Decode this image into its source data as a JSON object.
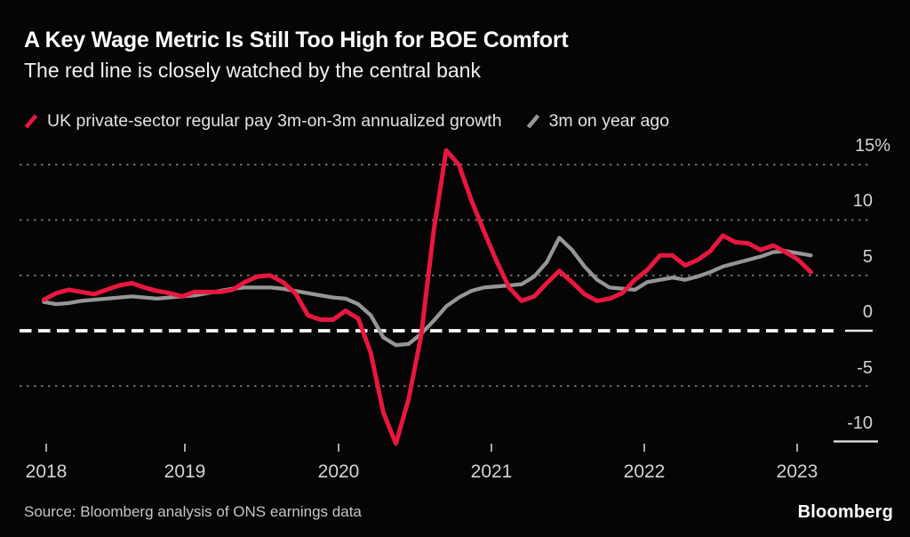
{
  "header": {
    "title": "A Key Wage Metric Is Still Too High for BOE Comfort",
    "subtitle": "The red line is closely watched by the central bank"
  },
  "legend": [
    {
      "label": "UK private-sector regular pay 3m-on-3m annualized growth",
      "color": "#e8173f"
    },
    {
      "label": "3m on year ago",
      "color": "#969696"
    }
  ],
  "footer": {
    "source": "Source: Bloomberg analysis of ONS earnings data",
    "brand": "Bloomberg"
  },
  "colors": {
    "background": "#050505",
    "grid_dotted": "#7a7a7a",
    "zero_line": "#ffffff",
    "axis_text": "#d4d4d4",
    "red_series": "#e8173f",
    "gray_series": "#969696"
  },
  "chart_data": {
    "type": "line",
    "title": "A Key Wage Metric Is Still Too High for BOE Comfort",
    "x_unit": "month",
    "x_start": "2018-01",
    "x_end": "2023-02",
    "x_tick_labels": [
      "2018",
      "2019",
      "2020",
      "2021",
      "2022",
      "2023"
    ],
    "y_ticks": [
      15,
      10,
      5,
      0,
      -5,
      -10
    ],
    "y_tick_labels": [
      "15%",
      "10",
      "5",
      "0",
      "-5",
      "-10"
    ],
    "ylim": [
      -12,
      17.5
    ],
    "grid": "horizontal dotted; emphasized white dashed line at 0",
    "legend_position": "top",
    "series": [
      {
        "name": "UK private-sector regular pay 3m-on-3m annualized growth",
        "color": "#e8173f",
        "values": [
          2.8,
          3.4,
          3.7,
          3.5,
          3.3,
          3.7,
          4.1,
          4.3,
          3.9,
          3.6,
          3.4,
          3.1,
          3.5,
          3.5,
          3.5,
          3.7,
          4.4,
          4.9,
          5.0,
          4.4,
          3.4,
          1.4,
          1.0,
          1.0,
          1.8,
          1.1,
          -2.0,
          -7.4,
          -10.2,
          -6.2,
          -0.5,
          9.0,
          16.3,
          15.0,
          11.8,
          9.0,
          6.3,
          3.9,
          2.7,
          3.1,
          4.3,
          5.4,
          4.4,
          3.3,
          2.7,
          2.9,
          3.4,
          4.6,
          5.5,
          6.8,
          6.8,
          5.9,
          6.4,
          7.2,
          8.6,
          8.0,
          7.9,
          7.3,
          7.7,
          7.1,
          6.4,
          5.3
        ]
      },
      {
        "name": "3m on year ago",
        "color": "#969696",
        "values": [
          2.6,
          2.4,
          2.5,
          2.7,
          2.8,
          2.9,
          3.0,
          3.1,
          3.0,
          2.9,
          3.0,
          3.1,
          3.2,
          3.4,
          3.6,
          3.8,
          3.9,
          3.9,
          3.9,
          3.8,
          3.6,
          3.4,
          3.2,
          3.0,
          2.9,
          2.4,
          1.4,
          -0.6,
          -1.3,
          -1.2,
          -0.3,
          0.9,
          2.2,
          3.0,
          3.6,
          3.9,
          4.0,
          4.1,
          4.2,
          4.9,
          6.2,
          8.4,
          7.3,
          5.8,
          4.6,
          3.9,
          3.8,
          3.7,
          4.4,
          4.6,
          4.8,
          4.6,
          4.9,
          5.3,
          5.8,
          6.1,
          6.4,
          6.7,
          7.1,
          7.2,
          7.0,
          6.8
        ]
      }
    ]
  }
}
